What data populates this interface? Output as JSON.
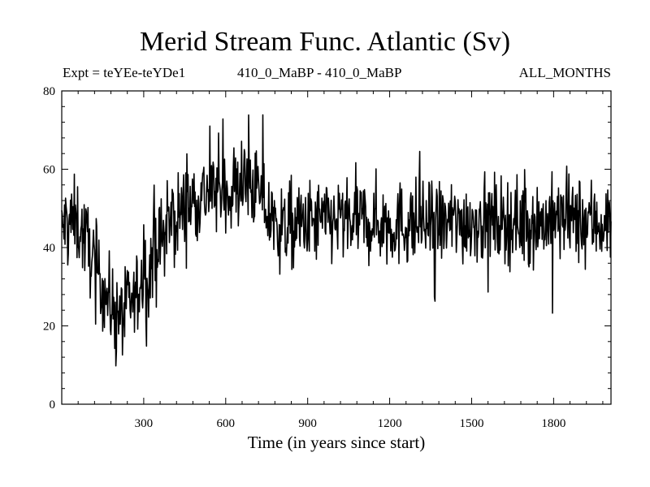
{
  "chart_data": {
    "type": "line",
    "title": "Merid Stream Func. Atlantic (Sv)",
    "subtitle_left": "Expt = teYEe-teYDe1",
    "subtitle_center": "410_0_MaBP - 410_0_MaBP",
    "subtitle_right": "ALL_MONTHS",
    "xlabel": "Time (in years since start)",
    "ylabel": "",
    "xlim": [
      0,
      2010
    ],
    "ylim": [
      0,
      80
    ],
    "x_ticks": [
      300,
      600,
      900,
      1200,
      1500,
      1800
    ],
    "y_ticks": [
      0,
      20,
      40,
      60,
      80
    ],
    "grid": false,
    "series": [
      {
        "name": "Merid Stream Func. Atlantic",
        "color": "#000000",
        "sample_step_years": 2,
        "trend_x": [
          0,
          20,
          60,
          100,
          140,
          180,
          220,
          260,
          300,
          340,
          380,
          420,
          460,
          500,
          540,
          580,
          620,
          660,
          700,
          740,
          760,
          800,
          900,
          1000,
          1100,
          1200,
          1300,
          1400,
          1500,
          1600,
          1700,
          1800,
          1900,
          2010
        ],
        "trend_y": [
          44,
          47,
          46,
          40,
          32,
          25,
          23,
          26,
          32,
          38,
          44,
          48,
          51,
          53,
          54,
          55,
          55,
          56,
          56,
          52,
          47,
          45,
          46,
          47,
          47,
          46,
          46,
          46,
          47,
          47,
          46,
          47,
          47,
          46
        ],
        "noise_amplitude_sv": 5.5,
        "min": 9.8,
        "max": 77.5
      }
    ]
  }
}
